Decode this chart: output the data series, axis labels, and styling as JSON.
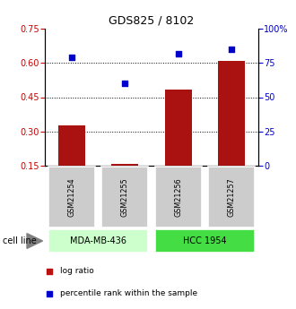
{
  "title": "GDS825 / 8102",
  "samples": [
    "GSM21254",
    "GSM21255",
    "GSM21256",
    "GSM21257"
  ],
  "log_ratios": [
    0.327,
    0.158,
    0.485,
    0.608
  ],
  "percentile_ranks": [
    79,
    60,
    82,
    85
  ],
  "left_ylim": [
    0.15,
    0.75
  ],
  "left_yticks": [
    0.15,
    0.3,
    0.45,
    0.6,
    0.75
  ],
  "right_ylim": [
    0,
    100
  ],
  "right_yticks": [
    0,
    25,
    50,
    75,
    100
  ],
  "right_yticklabels": [
    "0",
    "25",
    "50",
    "75",
    "100%"
  ],
  "grid_lines": [
    0.3,
    0.45,
    0.6
  ],
  "bar_color": "#aa1111",
  "scatter_color": "#0000cc",
  "bar_baseline": 0.15,
  "cell_lines": [
    {
      "label": "MDA-MB-436",
      "samples": [
        0,
        1
      ],
      "color": "#ccffcc"
    },
    {
      "label": "HCC 1954",
      "samples": [
        2,
        3
      ],
      "color": "#44dd44"
    }
  ],
  "cell_line_label": "cell line",
  "legend_items": [
    {
      "label": "log ratio",
      "color": "#bb1111"
    },
    {
      "label": "percentile rank within the sample",
      "color": "#0000cc"
    }
  ],
  "bar_width": 0.5,
  "sample_box_color": "#cccccc",
  "fig_bg": "#ffffff"
}
